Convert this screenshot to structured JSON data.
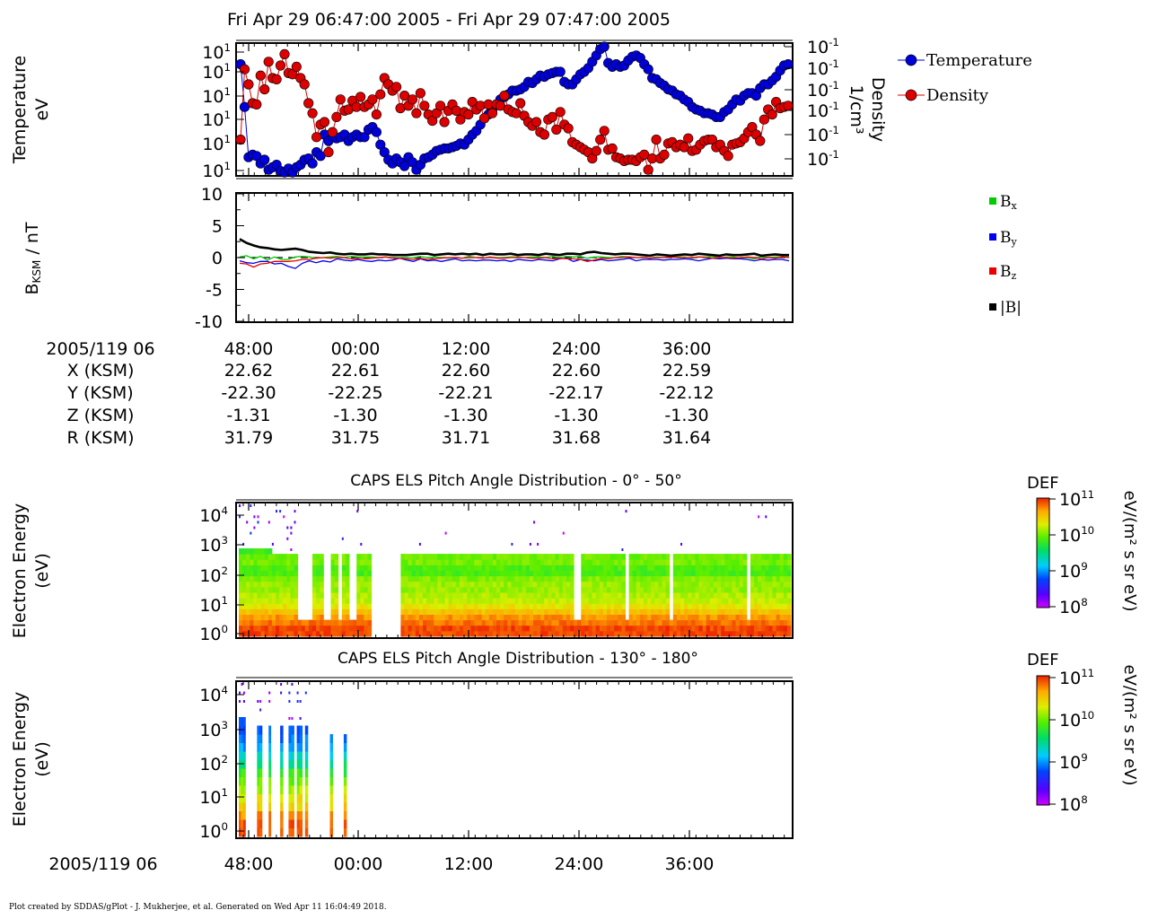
{
  "header": {
    "title": "Fri Apr 29 06:47:00 2005 - Fri Apr 29 07:47:00 2005"
  },
  "footer": {
    "text": "Plot created by SDDAS/gPlot - J. Mukherjee, et al.  Generated on Wed Apr 11 16:04:49 2018."
  },
  "colors": {
    "temperature": "#0000dd",
    "density": "#dd0000",
    "bx": "#00cc00",
    "by": "#0000ee",
    "bz": "#ee0000",
    "bmag": "#000000"
  },
  "ephemeris": {
    "label": "2005/119 06",
    "times": [
      "48:00",
      "00:00",
      "12:00",
      "24:00",
      "36:00"
    ],
    "rows": [
      {
        "name": "X (KSM)",
        "values": [
          "22.62",
          "22.61",
          "22.60",
          "22.60",
          "22.59"
        ]
      },
      {
        "name": "Y (KSM)",
        "values": [
          "-22.30",
          "-22.25",
          "-22.21",
          "-22.17",
          "-22.12"
        ]
      },
      {
        "name": "Z (KSM)",
        "values": [
          "-1.31",
          "-1.30",
          "-1.30",
          "-1.30",
          "-1.30"
        ]
      },
      {
        "name": "R (KSM)",
        "values": [
          "31.79",
          "31.75",
          "31.71",
          "31.68",
          "31.64"
        ]
      }
    ]
  },
  "bottom_axis": {
    "label": "2005/119 06",
    "ticks": [
      "48:00",
      "00:00",
      "12:00",
      "24:00",
      "36:00"
    ]
  },
  "chart_data": [
    {
      "type": "line",
      "panel": "moments",
      "ylabel": "Temperature",
      "ylabel_unit": "eV",
      "y2label": "Density",
      "y2label_unit": "1/cm³",
      "ytick_base": "10",
      "ytick_exp": "1",
      "y2tick_base": "10",
      "y2tick_exp": "-1",
      "yticks_count": 6,
      "legend": [
        {
          "name": "Temperature"
        },
        {
          "name": "Density"
        }
      ],
      "series": [
        {
          "name": "Temperature",
          "axis": "left",
          "values": [
            0.86,
            0.52,
            0.12,
            0.14,
            0.13,
            0.07,
            0.1,
            0.02,
            0.04,
            0.06,
            0.01,
            0,
            0.03,
            0,
            0.04,
            0.06,
            0.1,
            0.11,
            0.07,
            0.16,
            0.13,
            0.3,
            0.25,
            0.29,
            0.27,
            0.28,
            0.3,
            0.25,
            0.28,
            0.3,
            0.28,
            0.28,
            0.34,
            0.36,
            0.32,
            0.22,
            0.16,
            0.1,
            0.07,
            0.11,
            0.08,
            0.05,
            0.12,
            0.08,
            0.02,
            0.06,
            0.11,
            0.12,
            0.14,
            0.17,
            0.18,
            0.19,
            0.19,
            0.2,
            0.21,
            0.23,
            0.22,
            0.26,
            0.3,
            0.33,
            0.38,
            0.43,
            0.46,
            0.5,
            0.54,
            0.58,
            0.6,
            0.62,
            0.65,
            0.65,
            0.66,
            0.68,
            0.72,
            0.71,
            0.74,
            0.77,
            0.76,
            0.78,
            0.79,
            0.8,
            0.8,
            0.72,
            0.7,
            0.7,
            0.74,
            0.78,
            0.8,
            0.83,
            0.88,
            0.93,
            0.98,
            1,
            0.87,
            0.84,
            0.86,
            0.84,
            0.85,
            0.89,
            0.92,
            0.93,
            0.91,
            0.86,
            0.82,
            0.75,
            0.74,
            0.71,
            0.69,
            0.66,
            0.65,
            0.62,
            0.61,
            0.58,
            0.56,
            0.52,
            0.5,
            0.49,
            0.47,
            0.47,
            0.46,
            0.44,
            0.44,
            0.48,
            0.5,
            0.54,
            0.58,
            0.57,
            0.61,
            0.63,
            0.63,
            0.61,
            0.67,
            0.7,
            0.7,
            0.73,
            0.76,
            0.81,
            0.85,
            0.86
          ]
        },
        {
          "name": "Density",
          "axis": "right",
          "values": [
            0.26,
            0.82,
            0.7,
            0.55,
            0.54,
            0.77,
            0.66,
            0.88,
            0.75,
            0.74,
            0.85,
            0.94,
            0.79,
            0.78,
            0.84,
            0.75,
            0.7,
            0.55,
            0.47,
            0.28,
            0.38,
            0.4,
            0.16,
            0.32,
            0.44,
            0.58,
            0.49,
            0.5,
            0.57,
            0.52,
            0.6,
            0.52,
            0.54,
            0.58,
            0.46,
            0.62,
            0.75,
            0.7,
            0.65,
            0.68,
            0.51,
            0.61,
            0.53,
            0.58,
            0.47,
            0.63,
            0.53,
            0.46,
            0.41,
            0.47,
            0.53,
            0.4,
            0.49,
            0.54,
            0.49,
            0.42,
            0.48,
            0.46,
            0.56,
            0.5,
            0.53,
            0.43,
            0.54,
            0.47,
            0.54,
            0.53,
            0.61,
            0.5,
            0.48,
            0.47,
            0.55,
            0.45,
            0.4,
            0.37,
            0.4,
            0.32,
            0.3,
            0.42,
            0.44,
            0.34,
            0.48,
            0.38,
            0.35,
            0.24,
            0.22,
            0.2,
            0.18,
            0.16,
            0.11,
            0.17,
            0.26,
            0.33,
            0.18,
            0.19,
            0.12,
            0.11,
            0.09,
            0.1,
            0.1,
            0.09,
            0.12,
            0.14,
            0.02,
            0.11,
            0.26,
            0.11,
            0.14,
            0.23,
            0.24,
            0.2,
            0.22,
            0.2,
            0.27,
            0.17,
            0.18,
            0.22,
            0.25,
            0.26,
            0.26,
            0.2,
            0.22,
            0.17,
            0.13,
            0.22,
            0.23,
            0.24,
            0.27,
            0.32,
            0.36,
            0.3,
            0.25,
            0.42,
            0.5,
            0.46,
            0.56,
            0.51,
            0.52,
            0.53
          ]
        }
      ]
    },
    {
      "type": "line",
      "panel": "magnetic_field",
      "ylabel": "B",
      "ylabel_sub": "KSM",
      "ylabel_unit": " / nT",
      "ylim": [
        -10,
        10
      ],
      "yticks": [
        "10",
        "5",
        "0",
        "-5",
        "-10"
      ],
      "legend": [
        {
          "name": "B",
          "sub": "x"
        },
        {
          "name": "B",
          "sub": "y"
        },
        {
          "name": "B",
          "sub": "z"
        },
        {
          "name": "|B|",
          "sub": ""
        }
      ],
      "series": [
        {
          "name": "Bx",
          "values": [
            0.1,
            0.3,
            -0.2,
            0.2,
            -0.4,
            0.1,
            -0.3,
            -0.3,
            0.1,
            0.2,
            0.1,
            -0.1,
            0,
            0.1,
            0.2,
            0,
            0.2,
            0.1,
            0.1,
            0.1,
            0,
            0.1,
            0,
            0,
            0,
            0,
            0.2,
            0,
            0.1,
            0,
            -0.1,
            0,
            -0.1,
            0.2,
            0,
            -0.1,
            0,
            0,
            0,
            0.1,
            0.1,
            0,
            0.1,
            0.1,
            0,
            0.2,
            0,
            0.2,
            0.1,
            0.2,
            -0.1,
            0.1,
            0.1,
            0,
            0,
            0.2,
            0.1,
            0,
            0,
            -0.1,
            0.1,
            0,
            0.1,
            0.1,
            0.1,
            -0.1,
            0.1,
            0.1,
            0.2,
            -0.1,
            0.1,
            0.1,
            -0.1,
            0,
            -0.2,
            0.1,
            0,
            0.1,
            0.1,
            0.1
          ]
        },
        {
          "name": "By",
          "values": [
            -0.5,
            -0.8,
            -0.9,
            -0.6,
            -0.6,
            -1,
            -0.9,
            -1.4,
            -1.7,
            -0.9,
            -0.5,
            -0.8,
            -0.5,
            -0.7,
            -0.2,
            -0.4,
            -0.5,
            -0.3,
            -0.5,
            -0.6,
            -0.4,
            -0.5,
            -0.4,
            -0.1,
            -0.4,
            -0.6,
            -0.2,
            -0.5,
            -0.4,
            -0.6,
            -0.4,
            -0.2,
            -0.5,
            -0.4,
            -0.5,
            -0.4,
            -0.4,
            -0.5,
            -0.4,
            -0.6,
            -0.3,
            -0.4,
            -0.5,
            -0.3,
            -0.4,
            -0.5,
            -0.2,
            -0.1,
            -0.6,
            -0.3,
            -0.4,
            -0.5,
            -0.3,
            -0.5,
            -0.4,
            -0.3,
            -0.1,
            -0.5,
            -0.3,
            -0.3,
            -0.3,
            -0.4,
            -0.3,
            -0.3,
            -0.2,
            -0.3,
            -0.5,
            -0.3,
            -0.1,
            -0.2,
            -0.1,
            -0.2,
            -0.2,
            -0.3,
            -0.5,
            -0.3,
            -0.4,
            -0.3,
            -0.3,
            -0.5
          ]
        },
        {
          "name": "Bz",
          "values": [
            -0.9,
            -1,
            -1.5,
            -1,
            -0.9,
            -0.6,
            -0.6,
            -0.6,
            -0.5,
            -0.3,
            -0.3,
            -0.1,
            0,
            -0.1,
            0,
            0,
            -0.2,
            -0.1,
            -0.2,
            -0.1,
            0,
            0.1,
            -0.1,
            -0.1,
            -0.2,
            -0.3,
            -0.1,
            -0.3,
            -0.2,
            -0.1,
            0,
            0,
            -0.1,
            0,
            0,
            -0.1,
            0.1,
            -0.1,
            -0.1,
            0,
            0,
            0,
            -0.1,
            -0.1,
            0,
            -0.2,
            -0.1,
            -0.2,
            -0.2,
            -0.3,
            -0.6,
            -0.4,
            -0.1,
            -0.2,
            0,
            0,
            0.1,
            0,
            0,
            -0.1,
            0,
            0,
            0.1,
            0,
            0,
            0,
            0.1,
            0,
            -0.1,
            0,
            0,
            -0.1,
            0,
            0.1,
            0,
            -0.2,
            0,
            -0.1,
            0.1,
            0
          ]
        },
        {
          "name": "|B|",
          "values": [
            2.9,
            2.3,
            1.9,
            1.6,
            1.5,
            1.3,
            1.2,
            1.3,
            1.4,
            1.2,
            0.9,
            0.8,
            0.7,
            0.8,
            0.6,
            0.5,
            0.6,
            0.5,
            0.5,
            0.6,
            0.5,
            0.5,
            0.4,
            0.4,
            0.4,
            0.5,
            0.6,
            0.6,
            0.4,
            0.5,
            0.6,
            0.5,
            0.6,
            0.5,
            0.6,
            0.4,
            0.6,
            0.5,
            0.5,
            0.6,
            0.4,
            0.5,
            0.5,
            0.4,
            0.6,
            0.5,
            0.4,
            0.6,
            0.6,
            0.5,
            0.8,
            0.9,
            0.7,
            0.6,
            0.5,
            0.6,
            0.6,
            0.5,
            0.4,
            0.3,
            0.5,
            0.4,
            0.3,
            0.4,
            0.5,
            0.4,
            0.6,
            0.5,
            0.4,
            0.3,
            0.5,
            0.4,
            0.4,
            0.5,
            0.6,
            0.3,
            0.4,
            0.5,
            0.4,
            0.4
          ]
        }
      ]
    },
    {
      "type": "heatmap",
      "panel": "pad_0_50",
      "title": "CAPS ELS Pitch Angle Distribution - 0° - 50°",
      "ylabel": "Electron Energy",
      "ylabel_unit": "(eV)",
      "yticks": [
        {
          "base": "10",
          "exp": "4"
        },
        {
          "base": "10",
          "exp": "3"
        },
        {
          "base": "10",
          "exp": "2"
        },
        {
          "base": "10",
          "exp": "1"
        },
        {
          "base": "10",
          "exp": "0"
        }
      ],
      "colorbar": {
        "label": "DEF",
        "unit": "eV/(m² s sr eV)",
        "ticks": [
          {
            "base": "10",
            "exp": "11"
          },
          {
            "base": "10",
            "exp": "10"
          },
          {
            "base": "10",
            "exp": "9"
          },
          {
            "base": "10",
            "exp": "8"
          }
        ]
      },
      "gaps": [
        0.11,
        0.125,
        0.155,
        0.18,
        0.205,
        0.25,
        0.265,
        0.61,
        0.7,
        0.78,
        0.92
      ],
      "data_range": [
        0,
        1
      ],
      "dense_cutoff": 0.33,
      "profile": [
        0.97,
        0.97,
        0.93,
        0.9,
        0.84,
        0.78,
        0.74,
        0.72,
        0.7,
        0.7,
        0.68,
        0.62,
        0.63,
        0.67,
        0.66,
        0.6,
        0.52,
        0.46,
        0.42,
        0.34,
        0.28,
        0.2,
        0.14,
        0.06
      ]
    },
    {
      "type": "heatmap",
      "panel": "pad_130_180",
      "title": "CAPS ELS Pitch Angle Distribution - 130° - 180°",
      "ylabel": "Electron Energy",
      "ylabel_unit": "(eV)",
      "yticks": [
        {
          "base": "10",
          "exp": "4"
        },
        {
          "base": "10",
          "exp": "3"
        },
        {
          "base": "10",
          "exp": "2"
        },
        {
          "base": "10",
          "exp": "1"
        },
        {
          "base": "10",
          "exp": "0"
        }
      ],
      "colorbar": {
        "label": "DEF",
        "unit": "eV/(m² s sr eV)",
        "ticks": [
          {
            "base": "10",
            "exp": "11"
          },
          {
            "base": "10",
            "exp": "10"
          },
          {
            "base": "10",
            "exp": "9"
          },
          {
            "base": "10",
            "exp": "8"
          }
        ]
      },
      "data_range": [
        0,
        0.205
      ],
      "strips": [
        [
          0.0,
          0.012
        ],
        [
          0.033,
          0.042
        ],
        [
          0.054,
          0.058
        ],
        [
          0.075,
          0.08
        ],
        [
          0.09,
          0.1
        ],
        [
          0.105,
          0.115
        ],
        [
          0.12,
          0.125
        ],
        [
          0.165,
          0.17
        ],
        [
          0.19,
          0.195
        ]
      ],
      "profile": [
        0.97,
        0.95,
        0.9,
        0.82,
        0.78,
        0.72,
        0.66,
        0.6,
        0.5,
        0.42,
        0.34,
        0.3,
        0.28,
        0.26,
        0.24,
        0.2,
        0.15,
        0.12
      ]
    }
  ]
}
